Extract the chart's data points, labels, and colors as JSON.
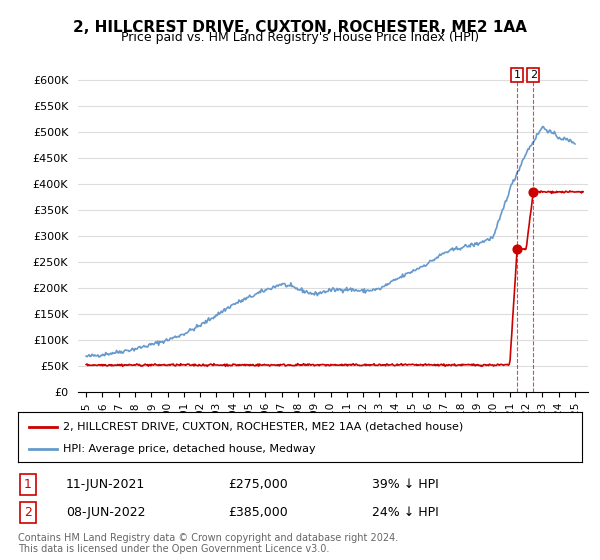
{
  "title": "2, HILLCREST DRIVE, CUXTON, ROCHESTER, ME2 1AA",
  "subtitle": "Price paid vs. HM Land Registry's House Price Index (HPI)",
  "ylabel": "",
  "ylim": [
    0,
    625000
  ],
  "yticks": [
    0,
    50000,
    100000,
    150000,
    200000,
    250000,
    300000,
    350000,
    400000,
    450000,
    500000,
    550000,
    600000
  ],
  "ytick_labels": [
    "£0",
    "£50K",
    "£100K",
    "£150K",
    "£200K",
    "£250K",
    "£300K",
    "£350K",
    "£400K",
    "£450K",
    "£500K",
    "£550K",
    "£600K"
  ],
  "legend_label_red": "2, HILLCREST DRIVE, CUXTON, ROCHESTER, ME2 1AA (detached house)",
  "legend_label_blue": "HPI: Average price, detached house, Medway",
  "transaction1_label": "1",
  "transaction1_date": "11-JUN-2021",
  "transaction1_price": "£275,000",
  "transaction1_pct": "39% ↓ HPI",
  "transaction2_label": "2",
  "transaction2_date": "08-JUN-2022",
  "transaction2_price": "£385,000",
  "transaction2_pct": "24% ↓ HPI",
  "copyright": "Contains HM Land Registry data © Crown copyright and database right 2024.\nThis data is licensed under the Open Government Licence v3.0.",
  "red_color": "#cc0000",
  "blue_color": "#6699cc",
  "dot_color": "#cc0000",
  "vline_color": "#cc0000",
  "background_color": "#ffffff",
  "grid_color": "#dddddd",
  "hpi_years": [
    1995,
    1996,
    1997,
    1998,
    1999,
    2000,
    2001,
    2002,
    2003,
    2004,
    2005,
    2006,
    2007,
    2008,
    2009,
    2010,
    2011,
    2012,
    2013,
    2014,
    2015,
    2016,
    2017,
    2018,
    2019,
    2020,
    2021,
    2022,
    2023,
    2024,
    2025
  ],
  "hpi_values": [
    68000,
    72000,
    77000,
    83000,
    91000,
    100000,
    112000,
    128000,
    148000,
    168000,
    182000,
    196000,
    208000,
    198000,
    188000,
    196000,
    198000,
    194000,
    198000,
    216000,
    232000,
    248000,
    268000,
    278000,
    285000,
    298000,
    390000,
    460000,
    510000,
    490000,
    480000
  ],
  "sale_years": [
    2021.45,
    2022.44
  ],
  "sale_values": [
    275000,
    385000
  ],
  "xlabel_years": [
    "1995",
    "1996",
    "1997",
    "1998",
    "1999",
    "2000",
    "2001",
    "2002",
    "2003",
    "2004",
    "2005",
    "2006",
    "2007",
    "2008",
    "2009",
    "2010",
    "2011",
    "2012",
    "2013",
    "2014",
    "2015",
    "2016",
    "2017",
    "2018",
    "2019",
    "2020",
    "2021",
    "2022",
    "2023",
    "2024",
    "2025"
  ]
}
